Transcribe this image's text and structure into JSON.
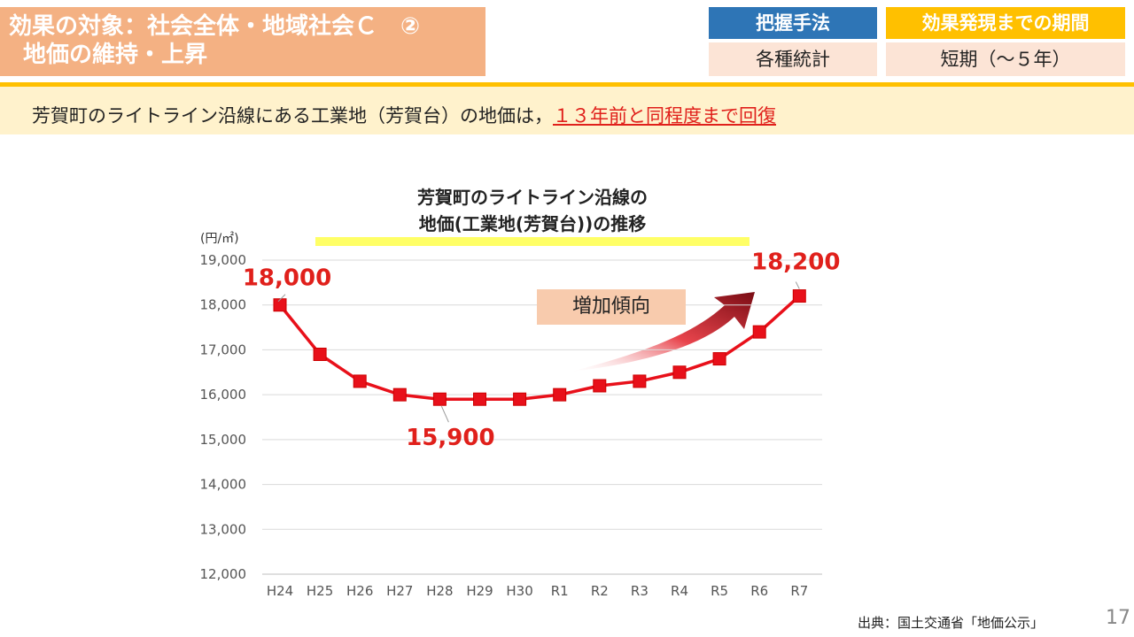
{
  "header": {
    "title_line1": "効果の対象：社会全体・地域社会Ｃ　②",
    "title_line2": "地価の維持・上昇"
  },
  "meta": {
    "method_label": "把握手法",
    "method_value": "各種統計",
    "period_label": "効果発現までの期間",
    "period_value": "短期（～５年）"
  },
  "summary": {
    "text": "芳賀町のライトライン沿線にある工業地（芳賀台）の地価は，",
    "emphasis": "１３年前と同程度まで回復"
  },
  "chart_data": {
    "type": "line",
    "title_line1": "芳賀町のライトライン沿線の",
    "title_line2": "地価(工業地(芳賀台))の推移",
    "ylabel": "(円/㎡)",
    "categories": [
      "H24",
      "H25",
      "H26",
      "H27",
      "H28",
      "H29",
      "H30",
      "R1",
      "R2",
      "R3",
      "R4",
      "R5",
      "R6",
      "R7"
    ],
    "series": [
      {
        "name": "",
        "values": [
          18000,
          16900,
          16300,
          16000,
          15900,
          15900,
          15900,
          16000,
          16200,
          16300,
          16500,
          16800,
          17400,
          18200
        ]
      }
    ],
    "ylim": [
      12000,
      19000
    ],
    "yticks": [
      12000,
      13000,
      14000,
      15000,
      16000,
      17000,
      18000,
      19000
    ],
    "ytick_labels": [
      "12,000",
      "13,000",
      "14,000",
      "15,000",
      "16,000",
      "17,000",
      "18,000",
      "19,000"
    ],
    "grid": true,
    "data_labels": [
      {
        "index": 0,
        "text": "18,000"
      },
      {
        "index": 4,
        "text": "15,900"
      },
      {
        "index": 13,
        "text": "18,200"
      }
    ],
    "annotation": "増加傾向",
    "line_color": "#e8101a"
  },
  "footer": {
    "source": "出典：国土交通省「地価公示」",
    "page": "17"
  }
}
